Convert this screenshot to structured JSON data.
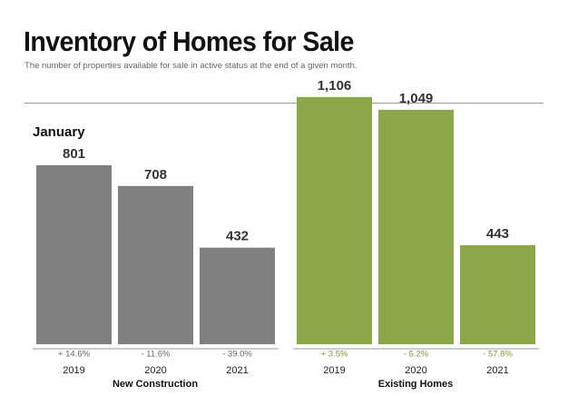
{
  "header": {
    "title": "Inventory of Homes for Sale",
    "subtitle": "The number of properties available for sale in active status at the end of a given month."
  },
  "month_label": "January",
  "colors": {
    "new_construction": "#808080",
    "existing_homes": "#8aa84a",
    "pct_text_gray": "#666666",
    "pct_text_green": "#7f9e3c",
    "value_text": "#333333",
    "axis": "#9a9a9a"
  },
  "chart_data": {
    "type": "bar",
    "title": "Inventory of Homes for Sale",
    "subtitle": "January",
    "groups": [
      {
        "name": "New Construction",
        "color": "#808080",
        "categories": [
          "2019",
          "2020",
          "2021"
        ],
        "values": [
          801,
          708,
          432
        ],
        "value_labels": [
          "801",
          "708",
          "432"
        ],
        "pct_change": [
          "+ 14.6%",
          "- 11.6%",
          "- 39.0%"
        ]
      },
      {
        "name": "Existing Homes",
        "color": "#8aa84a",
        "categories": [
          "2019",
          "2020",
          "2021"
        ],
        "values": [
          1106,
          1049,
          443
        ],
        "value_labels": [
          "1,106",
          "1,049",
          "443"
        ],
        "pct_change": [
          "+ 3.5%",
          "- 5.2%",
          "- 57.8%"
        ]
      }
    ],
    "ylim": [
      0,
      1280
    ],
    "grid": false
  }
}
